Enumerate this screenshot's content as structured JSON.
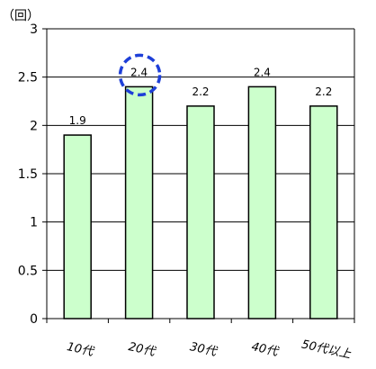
{
  "chart_data": {
    "type": "bar",
    "unit_label": "（回）",
    "categories": [
      "10代",
      "20代",
      "30代",
      "40代",
      "50代以上"
    ],
    "values": [
      1.9,
      2.4,
      2.2,
      2.4,
      2.2
    ],
    "data_labels": [
      "1.9",
      "2.4",
      "2.2",
      "2.4",
      "2.2"
    ],
    "y_ticks": [
      "0",
      "0.5",
      "1",
      "1.5",
      "2",
      "2.5",
      "3"
    ],
    "ylim": [
      0,
      3
    ],
    "grid": true,
    "highlighted_category": "20代",
    "colors": {
      "bar_fill": "#CCFFCC",
      "bar_stroke": "#000000",
      "highlight_circle": "#1E3FD8"
    }
  }
}
